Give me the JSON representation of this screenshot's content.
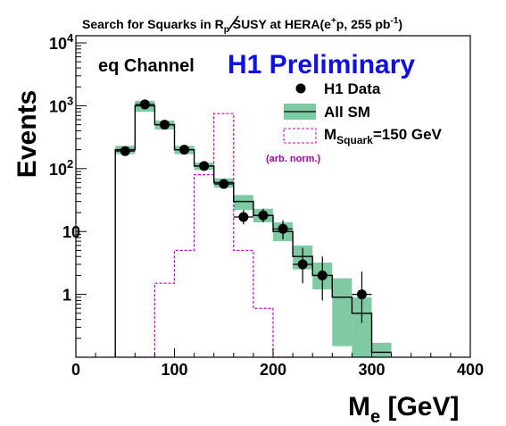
{
  "chart_data": {
    "type": "histogram",
    "title": {
      "prefix": "Search for Squarks in ",
      "rp_symbol": "R",
      "rp_sub": "p",
      "middle": " SUSY at HERA(e",
      "sup": "+",
      "suffix": "p, 255 pb",
      "sup2": "-1",
      "end": ")"
    },
    "ylabel": "Events",
    "xlabel": {
      "main": "M",
      "sub": "e",
      "rest": " [GeV]"
    },
    "xlim": [
      0,
      400
    ],
    "ylim": [
      0.1,
      13000
    ],
    "yscale": "log",
    "grid": false,
    "x_ticks": [
      "0",
      "100",
      "200",
      "300",
      "400"
    ],
    "x_tick_values": [
      0,
      100,
      200,
      300,
      400
    ],
    "y_ticks": [
      {
        "value": 1,
        "label": "1",
        "sup": ""
      },
      {
        "value": 10,
        "label": "10",
        "sup": ""
      },
      {
        "value": 100,
        "label": "10",
        "sup": "2"
      },
      {
        "value": 1000,
        "label": "10",
        "sup": "3"
      },
      {
        "value": 10000,
        "label": "10",
        "sup": "4"
      }
    ],
    "channel_label": "eq Channel",
    "preliminary_label": "H1 Preliminary",
    "legend_position": "top-right",
    "legend": {
      "data": "H1 Data",
      "sm": "All SM",
      "signal_main": "M",
      "signal_sub": "Squark",
      "signal_rest": "=150 GeV",
      "signal_note": "(arb. norm.)"
    },
    "colors": {
      "data": "#000000",
      "sm_line": "#000000",
      "sm_band": "#7fc9a3",
      "signal": "#c000c0",
      "preliminary": "#1010e0"
    },
    "bin_edges": [
      40,
      60,
      80,
      100,
      120,
      140,
      160,
      180,
      200,
      220,
      240,
      260,
      280,
      300,
      320
    ],
    "sm_values": [
      200,
      1000,
      500,
      200,
      110,
      60,
      30,
      18,
      10,
      4,
      2,
      0.9,
      0.5,
      0.12
    ],
    "sm_band_low": [
      170,
      800,
      420,
      170,
      95,
      50,
      22,
      14,
      7,
      2.5,
      1.2,
      0.15,
      0.1,
      0.1
    ],
    "sm_band_high": [
      230,
      1200,
      580,
      230,
      125,
      70,
      38,
      23,
      14,
      6,
      3.2,
      1.8,
      0.9,
      0.17
    ],
    "data_points": [
      {
        "x": 50,
        "y": 190,
        "ylow": 176,
        "yhigh": 204
      },
      {
        "x": 70,
        "y": 1050,
        "ylow": 1015,
        "yhigh": 1085
      },
      {
        "x": 90,
        "y": 500,
        "ylow": 478,
        "yhigh": 522
      },
      {
        "x": 110,
        "y": 200,
        "ylow": 186,
        "yhigh": 214
      },
      {
        "x": 130,
        "y": 110,
        "ylow": 100,
        "yhigh": 121
      },
      {
        "x": 150,
        "y": 57,
        "ylow": 50,
        "yhigh": 65
      },
      {
        "x": 170,
        "y": 17,
        "ylow": 13,
        "yhigh": 22
      },
      {
        "x": 190,
        "y": 18,
        "ylow": 14,
        "yhigh": 23
      },
      {
        "x": 210,
        "y": 11,
        "ylow": 7.5,
        "yhigh": 15
      },
      {
        "x": 230,
        "y": 3,
        "ylow": 1.5,
        "yhigh": 5.5
      },
      {
        "x": 250,
        "y": 2,
        "ylow": 0.8,
        "yhigh": 4
      },
      {
        "x": 290,
        "y": 1,
        "ylow": 0.35,
        "yhigh": 2.3
      }
    ],
    "data_xerr": 10,
    "signal_bins": [
      {
        "x0": 60,
        "x1": 80,
        "y": 0.1
      },
      {
        "x0": 80,
        "x1": 100,
        "y": 1.5
      },
      {
        "x0": 100,
        "x1": 120,
        "y": 5
      },
      {
        "x0": 120,
        "x1": 140,
        "y": 80
      },
      {
        "x0": 140,
        "x1": 160,
        "y": 750
      },
      {
        "x0": 160,
        "x1": 180,
        "y": 5
      },
      {
        "x0": 180,
        "x1": 200,
        "y": 0.6
      },
      {
        "x0": 200,
        "x1": 220,
        "y": 0.1
      }
    ]
  }
}
